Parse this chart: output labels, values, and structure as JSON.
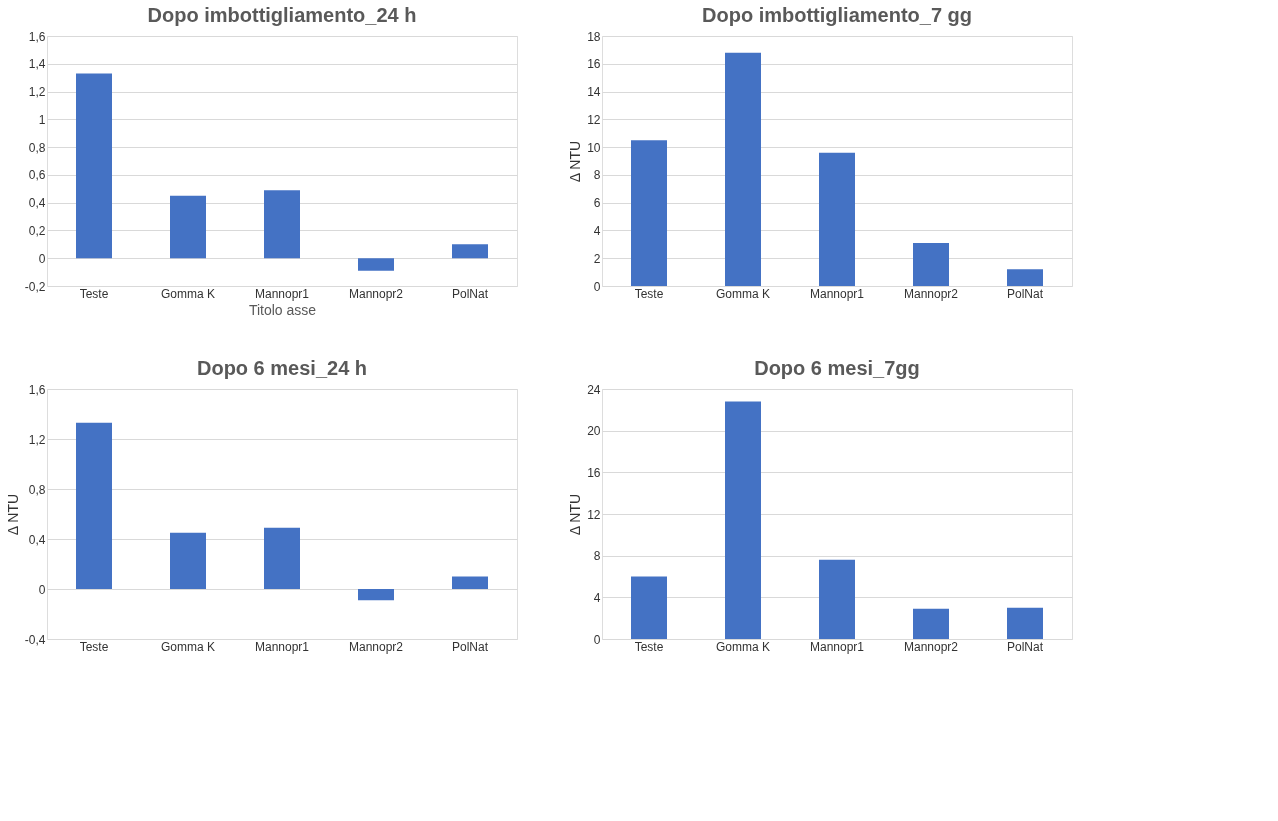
{
  "chart_data": [
    {
      "type": "bar",
      "title": "Dopo imbottigliamento_24 h",
      "xlabel": "Titolo asse",
      "categories": [
        "Teste",
        "Gomma K",
        "Mannopr1",
        "Mannopr2",
        "PolNat"
      ],
      "series": [
        {
          "color": "#4472c4",
          "values": [
            1.33,
            0.45,
            0.49,
            -0.09,
            0.1
          ]
        }
      ],
      "ylim": [
        -0.2,
        1.6
      ],
      "yticks": [
        {
          "value": -0.2,
          "label": "-0,2"
        },
        0,
        {
          "value": 0.2,
          "label": "0,2"
        },
        {
          "value": 0.4,
          "label": "0,4"
        },
        {
          "value": 0.6,
          "label": "0,6"
        },
        {
          "value": 0.8,
          "label": "0,8"
        },
        1,
        {
          "value": 1.2,
          "label": "1,2"
        },
        {
          "value": 1.4,
          "label": "1,4"
        },
        {
          "value": 1.6,
          "label": "1,6"
        }
      ],
      "grid": "y"
    },
    {
      "type": "bar",
      "title": "Dopo imbottigliamento_7 gg",
      "ylabel": "Δ NTU",
      "categories": [
        "Teste",
        "Gomma K",
        "Mannopr1",
        "Mannopr2",
        "PolNat"
      ],
      "series": [
        {
          "color": "#4472c4",
          "values": [
            10.5,
            16.8,
            9.6,
            3.1,
            1.2
          ]
        }
      ],
      "ylim": [
        0,
        18
      ],
      "yticks": [
        0,
        2,
        4,
        6,
        8,
        10,
        12,
        14,
        16,
        18
      ],
      "grid": "y"
    },
    {
      "type": "bar",
      "title": "Dopo 6 mesi_24 h",
      "ylabel": "Δ NTU",
      "categories": [
        "Teste",
        "Gomma K",
        "Mannopr1",
        "Mannopr2",
        "PolNat"
      ],
      "series": [
        {
          "color": "#4472c4",
          "values": [
            1.33,
            0.45,
            0.49,
            -0.09,
            0.1
          ]
        }
      ],
      "ylim": [
        -0.4,
        1.6
      ],
      "yticks": [
        {
          "value": -0.4,
          "label": "-0,4"
        },
        0,
        {
          "value": 0.4,
          "label": "0,4"
        },
        {
          "value": 0.8,
          "label": "0,8"
        },
        {
          "value": 1.2,
          "label": "1,2"
        },
        {
          "value": 1.6,
          "label": "1,6"
        }
      ],
      "grid": "y"
    },
    {
      "type": "bar",
      "title": "Dopo 6 mesi_7gg",
      "ylabel": "Δ NTU",
      "categories": [
        "Teste",
        "Gomma K",
        "Mannopr1",
        "Mannopr2",
        "PolNat"
      ],
      "series": [
        {
          "color": "#4472c4",
          "values": [
            6.0,
            22.8,
            7.6,
            2.9,
            3.0
          ]
        }
      ],
      "ylim": [
        0,
        24
      ],
      "yticks": [
        0,
        4,
        8,
        12,
        16,
        20,
        24
      ],
      "grid": "y"
    }
  ]
}
